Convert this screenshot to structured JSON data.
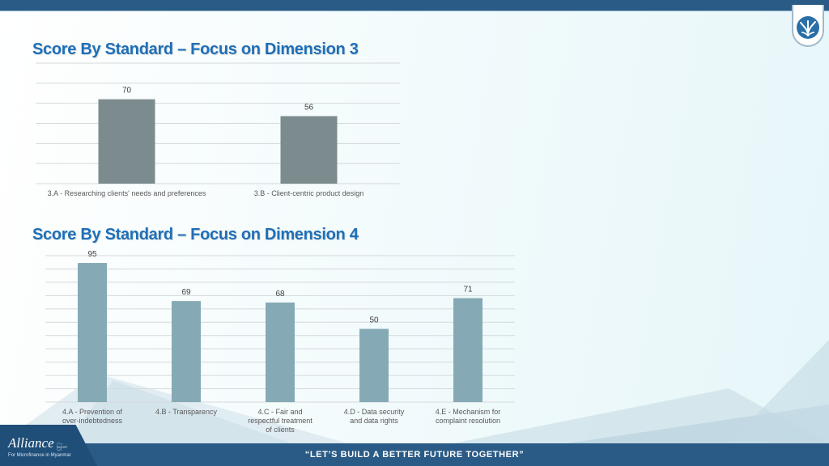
{
  "colors": {
    "chart1_bar": "#7c8b8e",
    "chart2_bar": "#86aab5",
    "title": "#1e6fb8",
    "bar_brand": "#2a5b86"
  },
  "titles": {
    "dimension3": "Score By Standard – Focus on Dimension 3",
    "dimension4": "Score By Standard – Focus on Dimension 4"
  },
  "chart_data": [
    {
      "type": "bar",
      "categories": [
        "3.A - Researching clients' needs and preferences",
        "3.B - Client-centric product design"
      ],
      "values": [
        70,
        56
      ],
      "ylim": [
        0,
        100
      ],
      "grid": true
    },
    {
      "type": "bar",
      "categories": [
        "4.A - Prevention of over-indebtedness",
        "4.B - Transparency",
        "4.C - Fair and respectful treatment of clients",
        "4.D - Data security and data rights",
        "4.E - Mechanism for complaint resolution"
      ],
      "values": [
        95,
        69,
        68,
        50,
        71
      ],
      "ylim": [
        0,
        100
      ],
      "grid": true
    }
  ],
  "footer": {
    "tagline": "“LET’S BUILD A BETTER FUTURE TOGETHER”",
    "logo_word": "Alliance",
    "logo_sub": "For Microfinance in Myanmar",
    "logo_local": "မြန်မာ"
  },
  "icons": {
    "badge": "rice-plant-icon"
  }
}
